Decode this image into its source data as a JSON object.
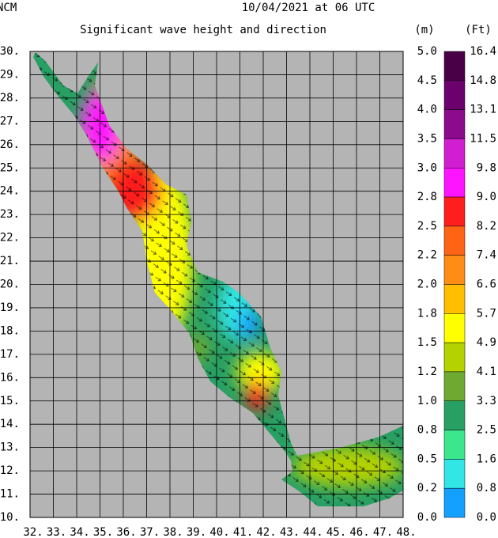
{
  "header": {
    "agency": "NCM",
    "date": "10/04/2021 at 06 UTC",
    "title": "Significant wave height and direction"
  },
  "map": {
    "lat_labels": [
      "30.",
      "29.",
      "28.",
      "27.",
      "26.",
      "25.",
      "24.",
      "23.",
      "22.",
      "21.",
      "20.",
      "19.",
      "18.",
      "17.",
      "16.",
      "15.",
      "14.",
      "13.",
      "12.",
      "11.",
      "10."
    ],
    "lon_labels": [
      "32.",
      "33.",
      "34.",
      "35.",
      "36.",
      "37.",
      "38.",
      "39.",
      "40.",
      "41.",
      "42.",
      "43.",
      "44.",
      "45.",
      "46.",
      "47.",
      "48."
    ]
  },
  "legend": {
    "unit_m": "(m)",
    "unit_ft": "(Ft)",
    "m_labels": [
      "5.0",
      "4.5",
      "4.0",
      "3.5",
      "3.0",
      "2.8",
      "2.5",
      "2.2",
      "2.0",
      "1.8",
      "1.5",
      "1.2",
      "1.0",
      "0.8",
      "0.5",
      "0.2",
      "0.0"
    ],
    "ft_labels": [
      "16.4",
      "14.8",
      "13.1",
      "11.5",
      "9.8",
      "9.0",
      "8.2",
      "7.4",
      "6.6",
      "5.7",
      "4.9",
      "4.1",
      "3.3",
      "2.5",
      "1.6",
      "0.8",
      "0.0"
    ],
    "colors": [
      "#4a0046",
      "#6c006c",
      "#8c0a8c",
      "#d21ed2",
      "#ff14ff",
      "#ff1e1e",
      "#ff6414",
      "#ff8c14",
      "#ffbe00",
      "#ffff00",
      "#b4d200",
      "#6eaa32",
      "#28a064",
      "#3ce68c",
      "#32e6e6",
      "#14a0ff"
    ]
  }
}
